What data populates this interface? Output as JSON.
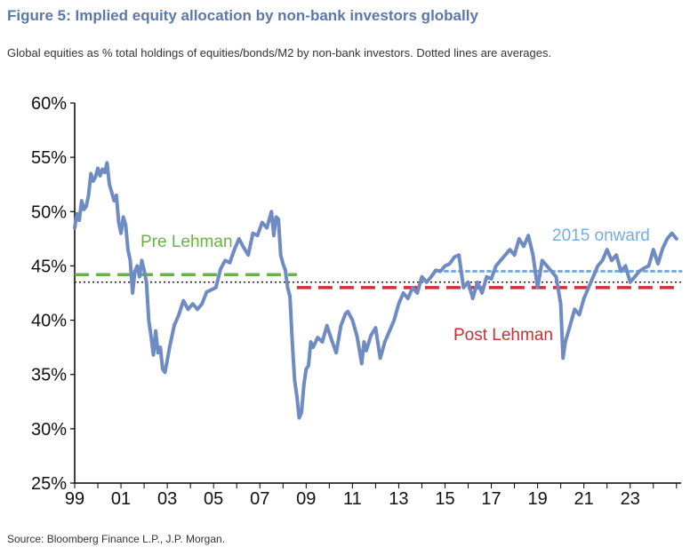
{
  "title": "Figure 5: Implied equity allocation by non-bank investors globally",
  "subtitle": "Global equities as % total holdings of equities/bonds/M2 by non-bank investors. Dotted lines are averages.",
  "source": "Source: Bloomberg Finance L.P., J.P. Morgan.",
  "chart_data": {
    "type": "line",
    "xlim": [
      1999,
      2025.2
    ],
    "ylim": [
      25,
      60
    ],
    "y_ticks": [
      25,
      30,
      35,
      40,
      45,
      50,
      55,
      60
    ],
    "y_tick_labels": [
      "25%",
      "30%",
      "35%",
      "40%",
      "45%",
      "50%",
      "55%",
      "60%"
    ],
    "x_ticks": [
      1999,
      2001,
      2003,
      2005,
      2007,
      2009,
      2011,
      2013,
      2015,
      2017,
      2019,
      2021,
      2023
    ],
    "x_tick_labels": [
      "99",
      "01",
      "03",
      "05",
      "07",
      "09",
      "11",
      "13",
      "15",
      "17",
      "19",
      "21",
      "23"
    ],
    "series": [
      {
        "color": "#6f8bc4",
        "x": [
          1999.0,
          1999.1,
          1999.2,
          1999.3,
          1999.4,
          1999.5,
          1999.6,
          1999.7,
          1999.8,
          1999.9,
          2000.0,
          2000.1,
          2000.2,
          2000.3,
          2000.4,
          2000.5,
          2000.6,
          2000.7,
          2000.8,
          2000.9,
          2001.0,
          2001.1,
          2001.2,
          2001.3,
          2001.4,
          2001.5,
          2001.6,
          2001.7,
          2001.8,
          2001.9,
          2002.0,
          2002.1,
          2002.2,
          2002.3,
          2002.4,
          2002.5,
          2002.6,
          2002.7,
          2002.8,
          2002.9,
          2003.0,
          2003.1,
          2003.3,
          2003.5,
          2003.7,
          2003.9,
          2004.1,
          2004.3,
          2004.5,
          2004.7,
          2004.9,
          2005.1,
          2005.3,
          2005.5,
          2005.7,
          2005.9,
          2006.1,
          2006.3,
          2006.5,
          2006.7,
          2006.9,
          2007.1,
          2007.3,
          2007.5,
          2007.6,
          2007.7,
          2007.8,
          2007.9,
          2008.0,
          2008.1,
          2008.2,
          2008.3,
          2008.4,
          2008.5,
          2008.6,
          2008.7,
          2008.8,
          2008.9,
          2009.0,
          2009.1,
          2009.2,
          2009.3,
          2009.5,
          2009.7,
          2009.9,
          2010.1,
          2010.3,
          2010.5,
          2010.7,
          2010.8,
          2011.0,
          2011.2,
          2011.4,
          2011.5,
          2011.6,
          2011.8,
          2012.0,
          2012.2,
          2012.4,
          2012.6,
          2012.8,
          2013.0,
          2013.2,
          2013.4,
          2013.6,
          2013.8,
          2014.0,
          2014.2,
          2014.4,
          2014.6,
          2014.8,
          2015.0,
          2015.2,
          2015.4,
          2015.6,
          2015.8,
          2016.0,
          2016.2,
          2016.4,
          2016.6,
          2016.8,
          2017.0,
          2017.2,
          2017.4,
          2017.6,
          2017.8,
          2018.0,
          2018.2,
          2018.4,
          2018.6,
          2018.8,
          2019.0,
          2019.2,
          2019.4,
          2019.6,
          2019.8,
          2020.0,
          2020.1,
          2020.2,
          2020.4,
          2020.6,
          2020.8,
          2021.0,
          2021.2,
          2021.4,
          2021.6,
          2021.8,
          2022.0,
          2022.2,
          2022.4,
          2022.6,
          2022.8,
          2023.0,
          2023.2,
          2023.4,
          2023.6,
          2023.8,
          2024.0,
          2024.2,
          2024.4,
          2024.6,
          2024.8,
          2025.0
        ],
        "y": [
          48.5,
          49.8,
          49.2,
          51.0,
          50.2,
          50.5,
          51.5,
          53.5,
          52.8,
          53.2,
          54.0,
          53.3,
          53.9,
          53.6,
          54.5,
          52.5,
          51.8,
          51.0,
          51.5,
          49.0,
          48.0,
          49.5,
          48.8,
          46.5,
          45.5,
          42.5,
          44.5,
          45.0,
          44.0,
          45.5,
          44.6,
          43.5,
          40.0,
          38.5,
          36.8,
          39.0,
          37.0,
          37.5,
          35.5,
          35.2,
          36.3,
          37.5,
          39.5,
          40.5,
          41.8,
          41.0,
          41.5,
          41.0,
          41.5,
          42.6,
          42.8,
          43.0,
          44.7,
          45.5,
          45.3,
          46.5,
          47.5,
          46.7,
          46.0,
          48.0,
          47.8,
          49.0,
          48.5,
          50.0,
          47.8,
          49.5,
          49.3,
          46.0,
          45.2,
          44.6,
          43.0,
          42.2,
          38.0,
          34.5,
          33.0,
          31.0,
          31.5,
          34.0,
          35.5,
          35.8,
          38.0,
          37.5,
          38.4,
          38.0,
          39.5,
          38.2,
          37.0,
          39.5,
          40.6,
          40.8,
          40.0,
          38.5,
          36.0,
          38.0,
          37.2,
          38.6,
          39.3,
          36.5,
          38.0,
          39.0,
          40.0,
          41.5,
          42.5,
          42.0,
          43.0,
          42.5,
          44.0,
          43.5,
          44.0,
          44.6,
          44.5,
          45.0,
          45.2,
          45.8,
          46.0,
          43.0,
          43.5,
          42.0,
          43.5,
          42.5,
          44.0,
          43.8,
          45.0,
          45.5,
          46.0,
          46.5,
          46.0,
          47.5,
          46.8,
          47.8,
          46.0,
          43.0,
          45.5,
          45.0,
          44.5,
          44.0,
          41.5,
          36.5,
          38.0,
          39.5,
          41.0,
          40.5,
          42.0,
          43.0,
          44.0,
          45.0,
          45.5,
          46.5,
          45.5,
          46.0,
          44.5,
          45.0,
          43.5,
          44.0,
          44.5,
          44.8,
          45.0,
          46.5,
          45.2,
          46.6,
          47.5,
          48.0,
          47.5
        ]
      }
    ],
    "reference_lines": [
      {
        "label": "Pre Lehman",
        "y": 44.2,
        "x_from": 1999,
        "x_to": 2008.6,
        "color": "#6ab04c",
        "style": "dashed"
      },
      {
        "label": "Post Lehman",
        "y": 43.0,
        "x_from": 2008.6,
        "x_to": 2025.2,
        "color": "#d12d35",
        "style": "dashed"
      },
      {
        "label": "2015 onward",
        "y": 44.5,
        "x_from": 2015.0,
        "x_to": 2025.2,
        "color": "#74aee0",
        "style": "dotted"
      },
      {
        "label": "",
        "y": 43.5,
        "x_from": 1999,
        "x_to": 2025.2,
        "color": "#222222",
        "style": "dotted"
      }
    ],
    "annotations": [
      {
        "text": "Pre Lehman",
        "color": "#6ab04c"
      },
      {
        "text": "Post Lehman",
        "color": "#d12d35"
      },
      {
        "text": "2015 onward",
        "color": "#74aee0"
      }
    ]
  }
}
